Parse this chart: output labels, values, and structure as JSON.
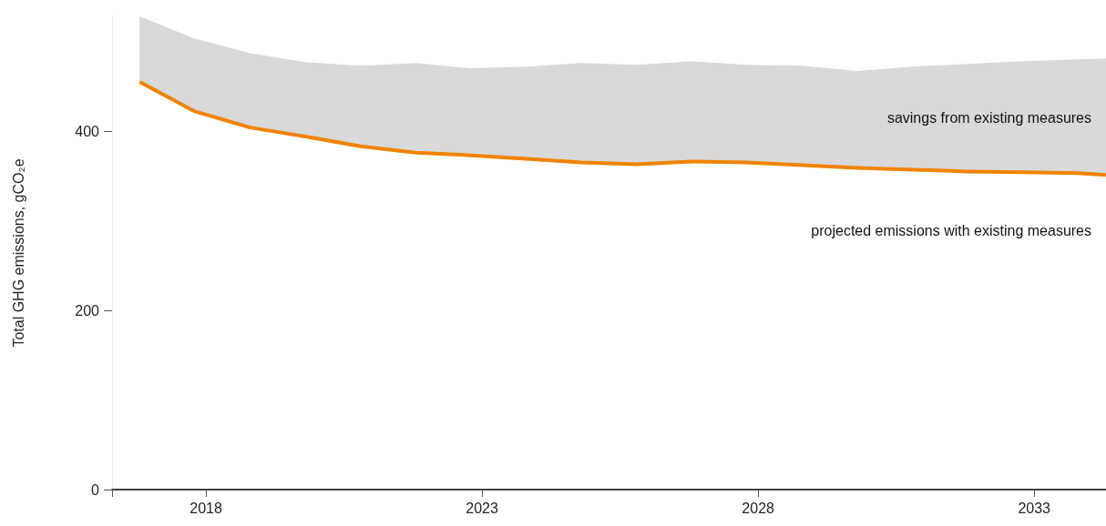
{
  "chart_data": {
    "type": "line",
    "ylabel": "Total GHG emissions, gCO₂e",
    "x": [
      2016.8,
      2017.8,
      2018.8,
      2019.8,
      2020.8,
      2021.8,
      2022.8,
      2023.8,
      2024.8,
      2025.8,
      2026.8,
      2027.8,
      2028.8,
      2029.8,
      2030.8,
      2031.8,
      2032.8,
      2033.8,
      2034.3
    ],
    "series": [
      {
        "color": "#f08300",
        "values": [
          455,
          422,
          404,
          394,
          383,
          376,
          373,
          369,
          365,
          363,
          366,
          365,
          362,
          359,
          357,
          355,
          354,
          353,
          351
        ],
        "lower": [
          455,
          422,
          404,
          394,
          383,
          376,
          373,
          369,
          365,
          363,
          366,
          365,
          362,
          359,
          357,
          355,
          354,
          353,
          351
        ],
        "upper": [
          528,
          503,
          487,
          477,
          473,
          476,
          470,
          472,
          476,
          474,
          478,
          474,
          473,
          467,
          472,
          475,
          478,
          480,
          481
        ]
      }
    ],
    "xlim": [
      2016.3,
      2034.3
    ],
    "xticks": [
      {
        "value": 2016.3,
        "label": null
      },
      2018,
      2023,
      2028,
      2033
    ],
    "ylim": [
      0,
      528
    ],
    "yticks": [
      0,
      200,
      400
    ],
    "annotations": [
      "savings from existing measures",
      "projected emissions with existing measures"
    ]
  }
}
